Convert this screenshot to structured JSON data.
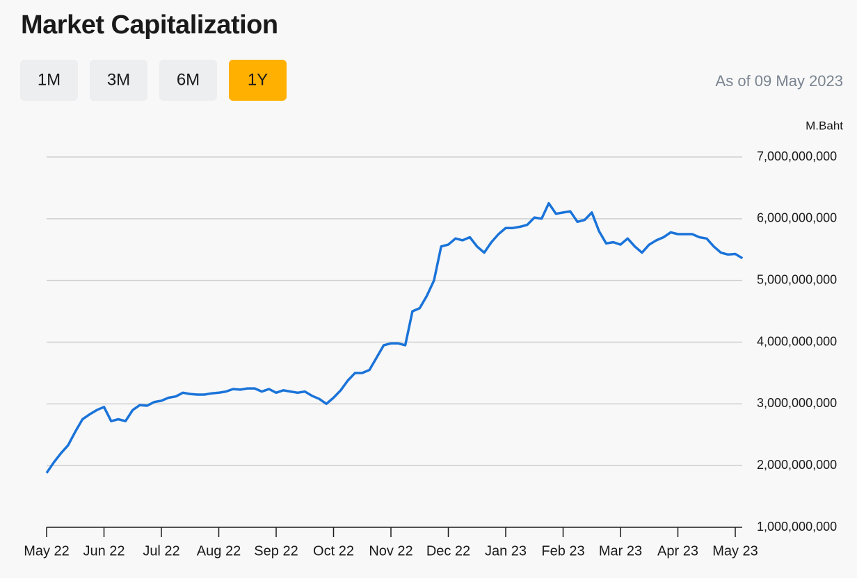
{
  "title": "Market Capitalization",
  "range_buttons": [
    "1M",
    "3M",
    "6M",
    "1Y"
  ],
  "selected_range": 3,
  "as_of": "As of 09 May 2023",
  "chart_data": {
    "type": "line",
    "unit_label": "M.Baht",
    "color": "#1a73d9",
    "grid": true,
    "categories": [
      "May 22",
      null,
      null,
      null,
      null,
      null,
      null,
      null,
      "Jun 22",
      null,
      null,
      null,
      null,
      null,
      null,
      null,
      "Jul 22",
      null,
      null,
      null,
      null,
      null,
      null,
      null,
      "Aug 22",
      null,
      null,
      null,
      null,
      null,
      null,
      null,
      "Sep 22",
      null,
      null,
      null,
      null,
      null,
      null,
      null,
      "Oct 22",
      null,
      null,
      null,
      null,
      null,
      null,
      null,
      "Nov 22",
      null,
      null,
      null,
      null,
      null,
      null,
      null,
      "Dec 22",
      null,
      null,
      null,
      null,
      null,
      null,
      null,
      "Jan 23",
      null,
      null,
      null,
      null,
      null,
      null,
      null,
      "Feb 23",
      null,
      null,
      null,
      null,
      null,
      null,
      null,
      "Mar 23",
      null,
      null,
      null,
      null,
      null,
      null,
      null,
      "Apr 23",
      null,
      null,
      null,
      null,
      null,
      null,
      null,
      "May 23",
      null
    ],
    "values": [
      1880000000,
      2050000000,
      2200000000,
      2330000000,
      2550000000,
      2750000000,
      2830000000,
      2900000000,
      2950000000,
      2720000000,
      2750000000,
      2720000000,
      2900000000,
      2980000000,
      2970000000,
      3030000000,
      3050000000,
      3100000000,
      3120000000,
      3180000000,
      3160000000,
      3150000000,
      3150000000,
      3170000000,
      3180000000,
      3200000000,
      3240000000,
      3230000000,
      3250000000,
      3250000000,
      3200000000,
      3240000000,
      3180000000,
      3220000000,
      3200000000,
      3180000000,
      3200000000,
      3130000000,
      3080000000,
      3000000000,
      3100000000,
      3220000000,
      3380000000,
      3500000000,
      3500000000,
      3550000000,
      3750000000,
      3950000000,
      3980000000,
      3980000000,
      3950000000,
      4500000000,
      4550000000,
      4750000000,
      5000000000,
      5550000000,
      5580000000,
      5680000000,
      5650000000,
      5700000000,
      5550000000,
      5450000000,
      5620000000,
      5750000000,
      5850000000,
      5850000000,
      5870000000,
      5900000000,
      6020000000,
      6000000000,
      6250000000,
      6080000000,
      6100000000,
      6120000000,
      5950000000,
      5980000000,
      6100000000,
      5800000000,
      5600000000,
      5620000000,
      5580000000,
      5680000000,
      5550000000,
      5450000000,
      5580000000,
      5650000000,
      5700000000,
      5780000000,
      5750000000,
      5750000000,
      5750000000,
      5700000000,
      5680000000,
      5550000000,
      5450000000,
      5420000000,
      5430000000,
      5360000000
    ],
    "ylim": [
      1000000000,
      7000000000
    ],
    "yticks": [
      {
        "value": 1000000000,
        "label": "1,000,000,000"
      },
      {
        "value": 2000000000,
        "label": "2,000,000,000"
      },
      {
        "value": 3000000000,
        "label": "3,000,000,000"
      },
      {
        "value": 4000000000,
        "label": "4,000,000,000"
      },
      {
        "value": 5000000000,
        "label": "5,000,000,000"
      },
      {
        "value": 6000000000,
        "label": "6,000,000,000"
      },
      {
        "value": 7000000000,
        "label": "7,000,000,000"
      }
    ]
  }
}
